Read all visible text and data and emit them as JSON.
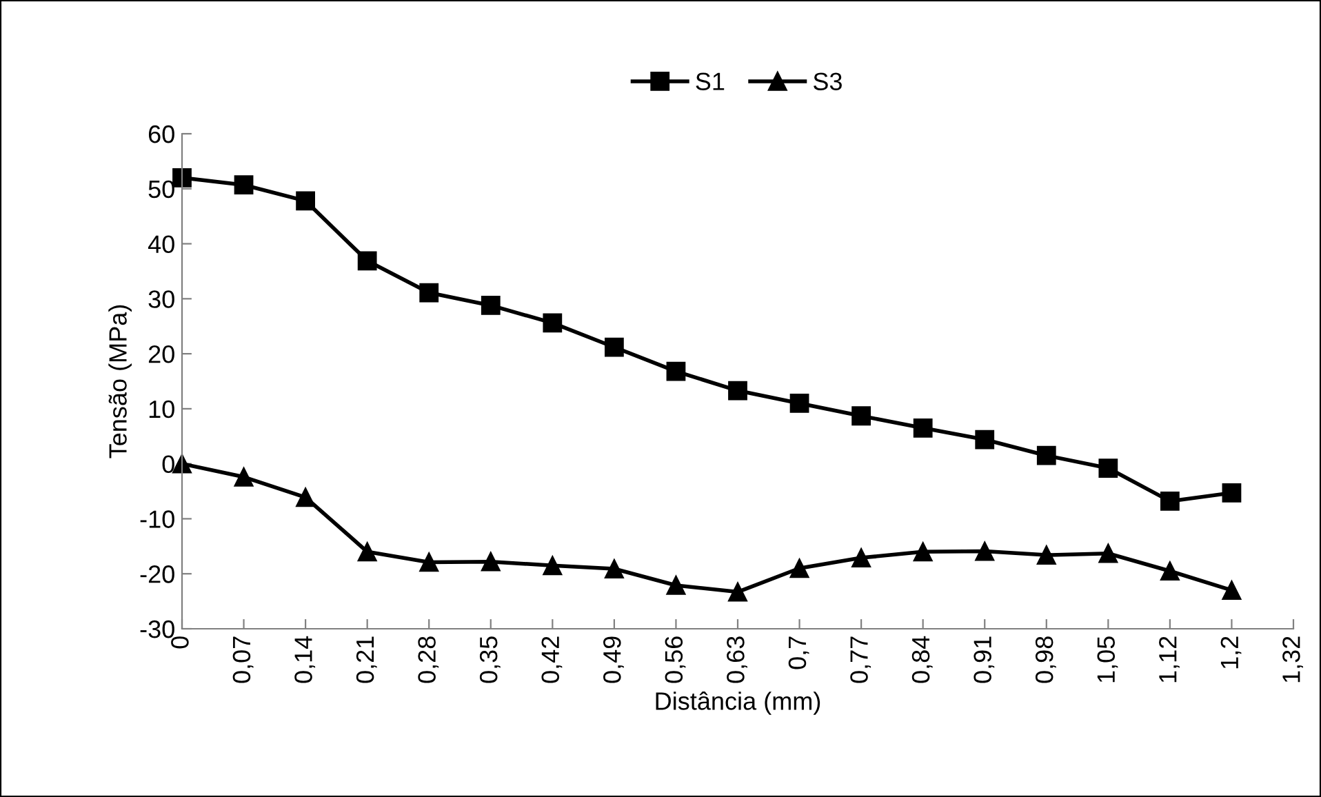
{
  "chart_data": {
    "type": "line",
    "xlabel": "Distância (mm)",
    "ylabel": "Tensão (MPa)",
    "categories": [
      "0",
      "0,07",
      "0,14",
      "0,21",
      "0,28",
      "0,35",
      "0,42",
      "0,49",
      "0,56",
      "0,63",
      "0,7",
      "0,77",
      "0,84",
      "0,91",
      "0,98",
      "1,05",
      "1,12",
      "1,2",
      "1,32"
    ],
    "series": [
      {
        "name": "S1",
        "color": "#000000",
        "marker": "square",
        "values": [
          52,
          50.7,
          47.8,
          36.9,
          31.1,
          28.8,
          25.6,
          21.2,
          16.8,
          13.3,
          11.0,
          8.7,
          6.5,
          4.4,
          1.5,
          -0.8,
          -6.8,
          -5.3,
          null
        ]
      },
      {
        "name": "S3",
        "color": "#000000",
        "marker": "triangle",
        "values": [
          0,
          -2.4,
          -6.1,
          -16.0,
          -17.9,
          -17.8,
          -18.5,
          -19.1,
          -22.1,
          -23.3,
          -19.0,
          -17.1,
          -16.0,
          -15.9,
          -16.6,
          -16.3,
          -19.5,
          -23.0,
          null
        ]
      }
    ],
    "ylim": [
      -30,
      60
    ],
    "yticks": [
      -30,
      -20,
      -10,
      0,
      10,
      20,
      30,
      40,
      50,
      60
    ],
    "grid": false,
    "legend": "top",
    "line_style": "solid"
  }
}
